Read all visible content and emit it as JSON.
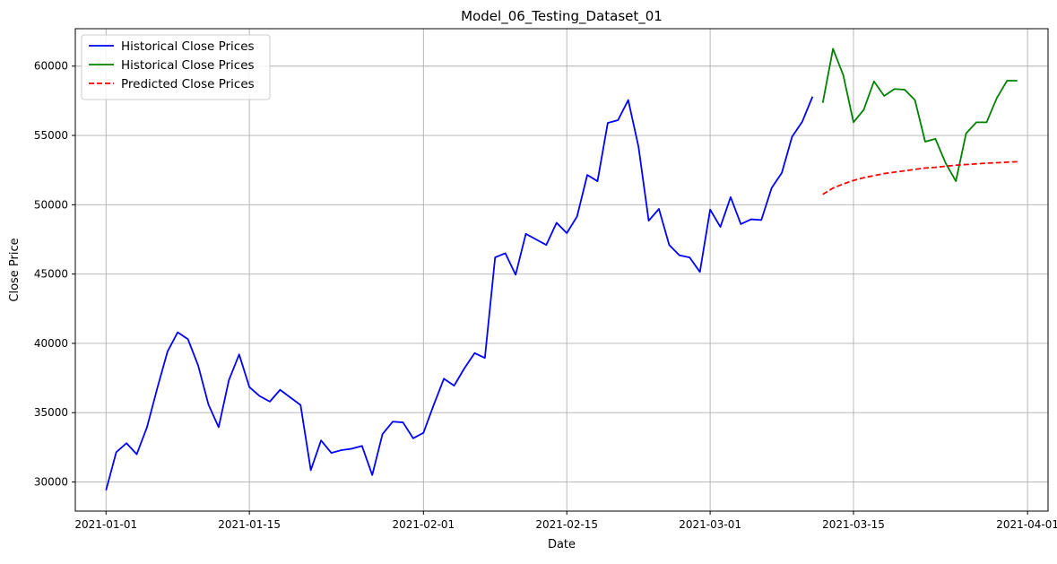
{
  "chart_data": {
    "type": "line",
    "title": "Model_06_Testing_Dataset_01",
    "xlabel": "Date",
    "ylabel": "Close Price",
    "grid": true,
    "legend_position": "top-left",
    "xlim": [
      "2020-12-29",
      "2021-04-03"
    ],
    "ylim": [
      27900,
      62700
    ],
    "x_ticks": [
      "2021-01-01",
      "2021-01-15",
      "2021-02-01",
      "2021-02-15",
      "2021-03-01",
      "2021-03-15",
      "2021-04-01"
    ],
    "y_ticks": [
      30000,
      35000,
      40000,
      45000,
      50000,
      55000,
      60000
    ],
    "series": [
      {
        "name": "Historical Close Prices",
        "color": "#0000ff",
        "style": "solid",
        "start_date": "2021-01-01",
        "values": [
          29400,
          32150,
          32800,
          32000,
          33950,
          36750,
          39400,
          40800,
          40300,
          38400,
          35600,
          33950,
          37350,
          39200,
          36850,
          36200,
          35800,
          36650,
          36100,
          35550,
          30850,
          33000,
          32100,
          32300,
          32400,
          32600,
          30500,
          33450,
          34350,
          34300,
          33150,
          33550,
          35550,
          37450,
          36950,
          38200,
          39300,
          38950,
          46200,
          46500,
          44950,
          47900,
          47500,
          47100,
          48700,
          47950,
          49150,
          52150,
          51700,
          55900,
          56100,
          57550,
          54200,
          48850,
          49700,
          47100,
          46350,
          46200,
          45150,
          49650,
          48400,
          50550,
          48600,
          48950,
          48900,
          51200,
          52300,
          54900,
          56000,
          57800
        ]
      },
      {
        "name": "Historical Close Prices",
        "color": "#008000",
        "style": "solid",
        "start_date": "2021-03-12",
        "values": [
          57350,
          61250,
          59350,
          55950,
          56850,
          58900,
          57850,
          58350,
          58300,
          57550,
          54550,
          54750,
          53000,
          51700,
          55150,
          55950,
          55950,
          57700,
          58950,
          58950
        ]
      },
      {
        "name": "Predicted Close Prices",
        "color": "#ff0000",
        "style": "dashed",
        "start_date": "2021-03-12",
        "values": [
          50750,
          51200,
          51500,
          51750,
          51950,
          52100,
          52250,
          52350,
          52450,
          52550,
          52650,
          52700,
          52780,
          52850,
          52900,
          52950,
          53000,
          53030,
          53070,
          53100
        ]
      }
    ]
  }
}
